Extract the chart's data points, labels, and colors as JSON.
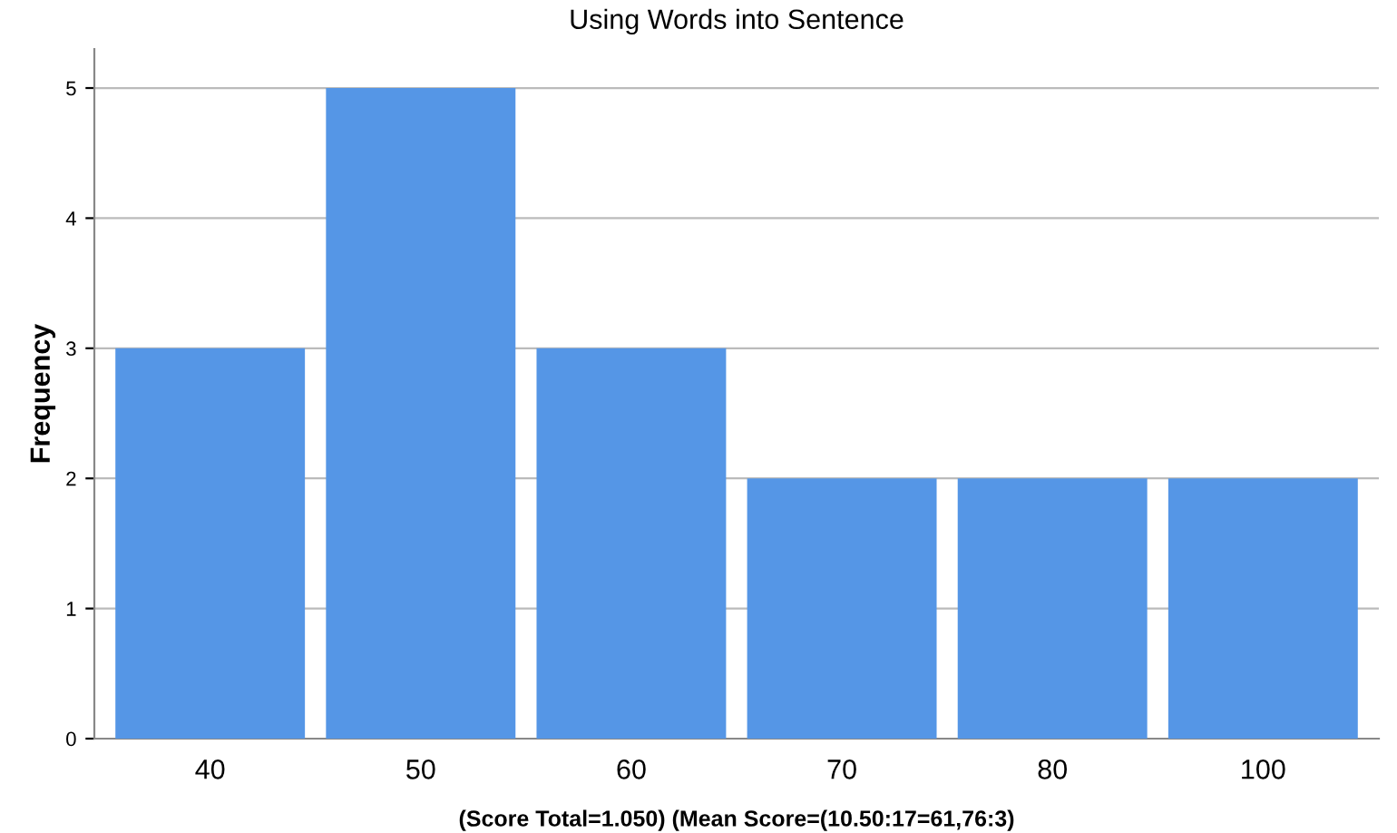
{
  "chart_data": {
    "type": "bar",
    "title": "Using Words into Sentence",
    "xlabel": "(Score Total=1.050) (Mean Score=(10.50:17=61,76:3)",
    "ylabel": "Frequency",
    "categories": [
      "40",
      "50",
      "60",
      "70",
      "80",
      "100"
    ],
    "values": [
      3,
      5,
      3,
      2,
      2,
      2
    ],
    "color": "#5596e6",
    "ylim": [
      0,
      5.3
    ],
    "yticks": [
      0,
      1,
      2,
      3,
      4,
      5
    ],
    "grid": "y",
    "legend": false
  }
}
